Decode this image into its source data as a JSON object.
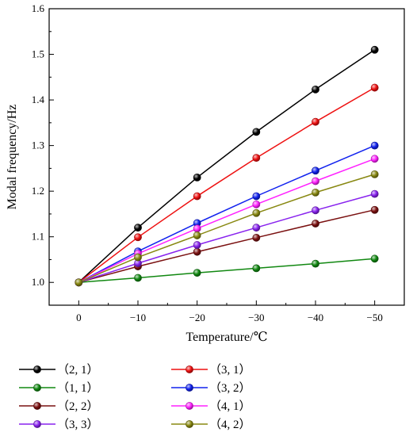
{
  "chart_data": {
    "type": "line",
    "xlabel": "Temperature/℃",
    "ylabel": "Modal frequency/Hz",
    "x": [
      0,
      -10,
      -20,
      -30,
      -40,
      -50
    ],
    "x_tick_labels": [
      "0",
      "−10",
      "−20",
      "−30",
      "−40",
      "−50"
    ],
    "xlim": [
      5,
      -55
    ],
    "x_axis_direction": "reversed",
    "ylim": [
      0.95,
      1.6
    ],
    "y_ticks": [
      1.0,
      1.1,
      1.2,
      1.3,
      1.4,
      1.5,
      1.6
    ],
    "y_tick_labels": [
      "1.0",
      "1.1",
      "1.2",
      "1.3",
      "1.4",
      "1.5",
      "1.6"
    ],
    "grid": false,
    "legend_position": "bottom",
    "series": [
      {
        "name": "（2, 1）",
        "color": "#000000",
        "values": [
          1.0,
          1.12,
          1.23,
          1.33,
          1.423,
          1.51
        ]
      },
      {
        "name": "（3, 1）",
        "color": "#ee1111",
        "values": [
          1.0,
          1.099,
          1.189,
          1.273,
          1.352,
          1.427
        ]
      },
      {
        "name": "（1, 1）",
        "color": "#118811",
        "values": [
          1.0,
          1.01,
          1.021,
          1.031,
          1.041,
          1.052
        ]
      },
      {
        "name": "（3, 2）",
        "color": "#1122ee",
        "values": [
          1.0,
          1.068,
          1.13,
          1.189,
          1.245,
          1.3
        ]
      },
      {
        "name": "（2, 2）",
        "color": "#7a1010",
        "values": [
          1.0,
          1.035,
          1.067,
          1.098,
          1.129,
          1.159
        ]
      },
      {
        "name": "（4, 1）",
        "color": "#ff22ff",
        "values": [
          1.0,
          1.063,
          1.118,
          1.171,
          1.222,
          1.271
        ]
      },
      {
        "name": "（3, 3）",
        "color": "#8822ee",
        "values": [
          1.0,
          1.042,
          1.082,
          1.12,
          1.158,
          1.194
        ]
      },
      {
        "name": "（4, 2）",
        "color": "#888811",
        "values": [
          1.0,
          1.055,
          1.103,
          1.152,
          1.197,
          1.237
        ]
      }
    ]
  }
}
